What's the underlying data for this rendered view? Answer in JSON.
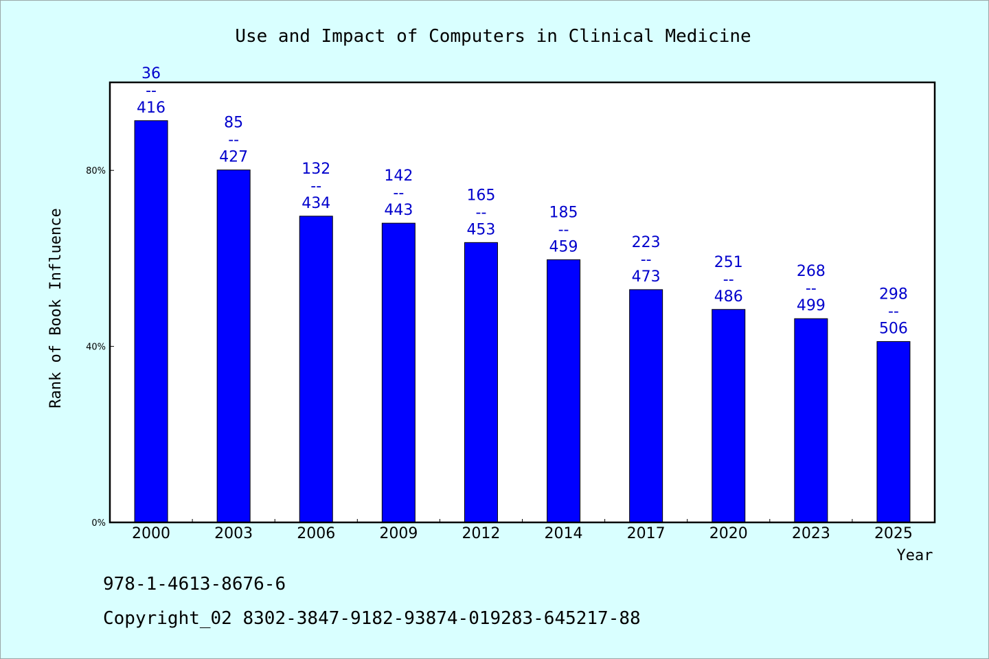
{
  "chart_data": {
    "type": "bar",
    "title": "Use and Impact of Computers in Clinical Medicine",
    "xlabel": "Year",
    "ylabel": "Rank of Book Influence",
    "ylim": [
      0,
      100
    ],
    "yticks": [
      "0%",
      "40%",
      "80%"
    ],
    "ytick_values": [
      0,
      40,
      80
    ],
    "categories": [
      "2000",
      "2003",
      "2006",
      "2009",
      "2012",
      "2014",
      "2017",
      "2020",
      "2023",
      "2025"
    ],
    "values": [
      91.3,
      80.1,
      69.6,
      68.0,
      63.6,
      59.7,
      52.9,
      48.4,
      46.3,
      41.1
    ],
    "labels": [
      {
        "top": "36",
        "sep": "--",
        "bottom": "416"
      },
      {
        "top": "85",
        "sep": "--",
        "bottom": "427"
      },
      {
        "top": "132",
        "sep": "--",
        "bottom": "434"
      },
      {
        "top": "142",
        "sep": "--",
        "bottom": "443"
      },
      {
        "top": "165",
        "sep": "--",
        "bottom": "453"
      },
      {
        "top": "185",
        "sep": "--",
        "bottom": "459"
      },
      {
        "top": "223",
        "sep": "--",
        "bottom": "473"
      },
      {
        "top": "251",
        "sep": "--",
        "bottom": "486"
      },
      {
        "top": "268",
        "sep": "--",
        "bottom": "499"
      },
      {
        "top": "298",
        "sep": "--",
        "bottom": "506"
      }
    ],
    "bar_color": "#0000ff",
    "label_color": "#0000cc",
    "background": "#d9ffff",
    "plot_background": "#ffffff",
    "grid": false,
    "legend": "none"
  },
  "footer": {
    "isbn": "978-1-4613-8676-6",
    "copyright": "Copyright_02 8302-3847-9182-93874-019283-645217-88"
  }
}
